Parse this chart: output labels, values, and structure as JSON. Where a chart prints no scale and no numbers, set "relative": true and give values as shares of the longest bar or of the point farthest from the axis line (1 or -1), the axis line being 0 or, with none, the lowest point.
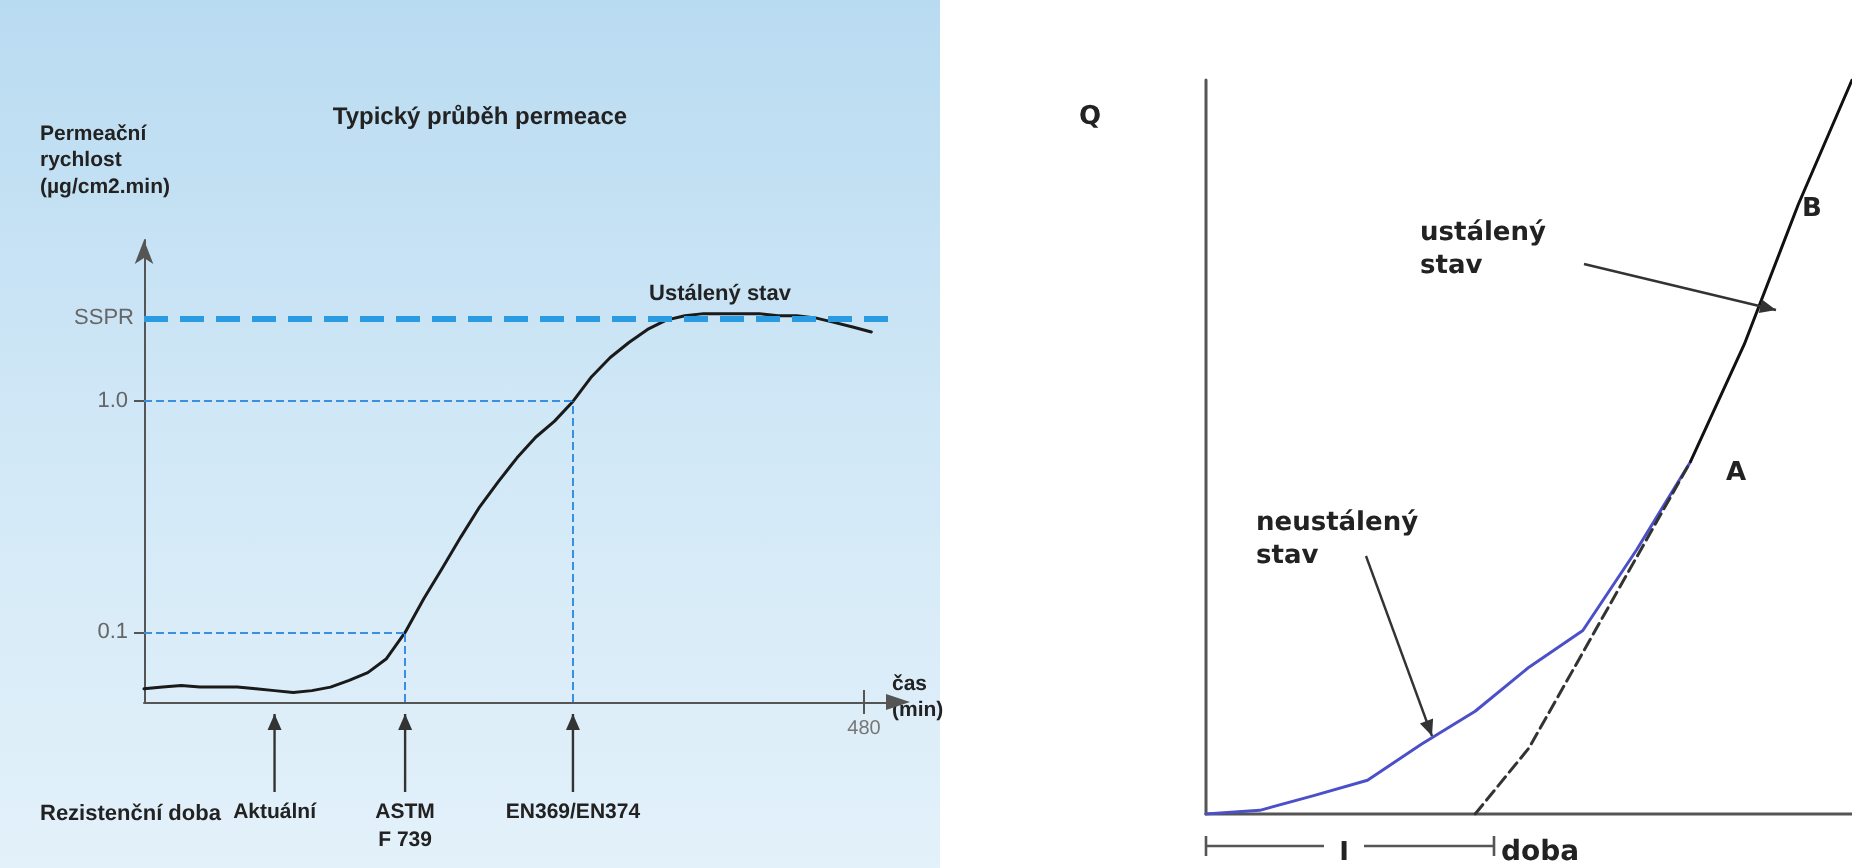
{
  "chart_data": [
    {
      "type": "line",
      "title": "Typický průběh permeace",
      "ylabel": "Permeační\nrychlost\n(µg/cm2.min)",
      "xlabel": "čas\n(min)",
      "log": "y",
      "ylim": [
        0.05,
        5
      ],
      "yticks": [
        {
          "value": 0.1,
          "label": "0.1"
        },
        {
          "value": 1,
          "label": "1.0"
        }
      ],
      "categories": [
        null,
        null,
        null,
        null,
        null,
        null,
        null,
        "Aktuální",
        null,
        null,
        null,
        null,
        null,
        null,
        "ASTM\nF 739",
        null,
        null,
        null,
        null,
        null,
        null,
        null,
        null,
        "EN369/EN374",
        null,
        null,
        null,
        null,
        null,
        null,
        null,
        null,
        null,
        null,
        null,
        null,
        null,
        null,
        null,
        null,
        null
      ],
      "series": [
        {
          "color": "#1a1a1a",
          "values": [
            0.057,
            0.058,
            0.059,
            0.058,
            0.058,
            0.058,
            0.057,
            0.056,
            0.055,
            0.056,
            0.058,
            0.062,
            0.067,
            0.077,
            0.1,
            0.14,
            0.19,
            0.26,
            0.35,
            0.45,
            0.57,
            0.7,
            0.82,
            1.0,
            1.28,
            1.55,
            1.8,
            2.05,
            2.25,
            2.35,
            2.4,
            2.4,
            2.4,
            2.4,
            2.35,
            2.35,
            2.3,
            2.2,
            2.1,
            2.0,
            null
          ]
        }
      ],
      "ref_lines": [
        {
          "axis": "y",
          "value": 2.3,
          "label": "SSPR",
          "color": "#2a9be0",
          "line_style": "dashed"
        },
        {
          "axis": "y",
          "value": 0.1,
          "color": "#3a8fe0",
          "line_style": "dashed"
        },
        {
          "axis": "y",
          "value": 1,
          "color": "#3a8fe0",
          "line_style": "dashed"
        },
        {
          "axis": "x",
          "value": "ASTM\nF 739",
          "color": "#3a8fe0",
          "line_style": "dashed"
        },
        {
          "axis": "x",
          "value": "EN369/EN374",
          "color": "#3a8fe0",
          "line_style": "dashed"
        }
      ],
      "annotations": [
        "Ustálený stav",
        "Rezistenční doba",
        "480"
      ]
    },
    {
      "type": "line",
      "relative": true,
      "ylabel": "Q",
      "xlabel": "doba",
      "categories": [
        null,
        null,
        null,
        null,
        null,
        null,
        null,
        null,
        null,
        null,
        null,
        null,
        null
      ],
      "series": [
        {
          "color": "#4b50c8",
          "values": [
            0,
            0.005,
            0.025,
            0.046,
            0.095,
            0.14,
            0.2,
            0.25,
            0.36,
            0.48,
            null,
            null,
            null
          ]
        },
        {
          "color": "#111111",
          "values": [
            null,
            null,
            null,
            null,
            null,
            null,
            null,
            null,
            null,
            0.48,
            0.64,
            0.83,
            1.0
          ]
        },
        {
          "color": "#333333",
          "line_style": "dashed",
          "values": [
            null,
            null,
            null,
            null,
            null,
            0,
            0.09,
            0.22,
            0.35,
            0.48,
            null,
            null,
            null
          ]
        }
      ],
      "annotations": [
        "ustálený\nstav",
        "B",
        "A",
        "neustálený\nstav",
        "I"
      ]
    }
  ]
}
